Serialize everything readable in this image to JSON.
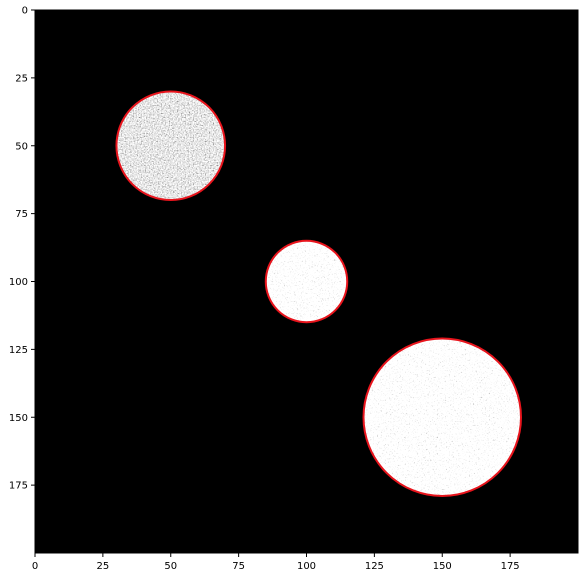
{
  "image": {
    "background_color": "#000000",
    "circle_outline_color": "#e8141c",
    "width_units": 200,
    "height_units": 200
  },
  "circles": [
    {
      "cx": 50,
      "cy": 50,
      "r": 20,
      "texture": "dark-gray-noise"
    },
    {
      "cx": 100,
      "cy": 100,
      "r": 15,
      "texture": "light-gray-noise"
    },
    {
      "cx": 150,
      "cy": 150,
      "r": 29,
      "texture": "light-gray-noise"
    }
  ],
  "axes": {
    "x_ticks": [
      "0",
      "25",
      "50",
      "75",
      "100",
      "125",
      "150",
      "175"
    ],
    "y_ticks": [
      "0",
      "25",
      "50",
      "75",
      "100",
      "125",
      "150",
      "175"
    ]
  }
}
